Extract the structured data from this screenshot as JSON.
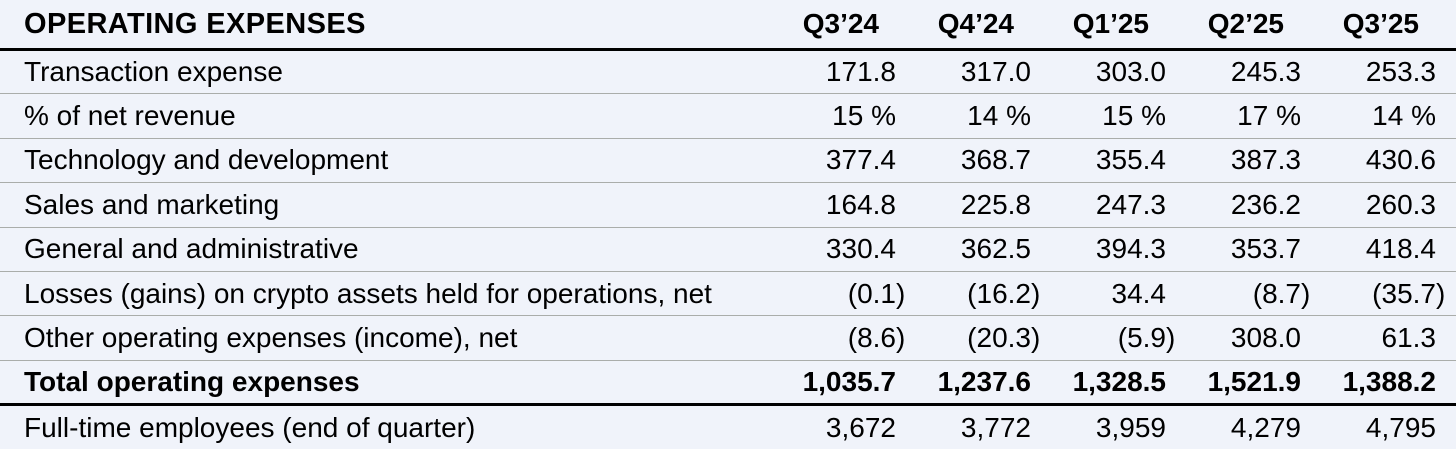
{
  "chart_data": {
    "type": "table",
    "title": "OPERATING EXPENSES",
    "columns": [
      "Q3’24",
      "Q4’24",
      "Q1’25",
      "Q2’25",
      "Q3’25"
    ],
    "rows": [
      {
        "label": "Transaction expense",
        "values": [
          "171.8",
          "317.0",
          "303.0",
          "245.3",
          "253.3"
        ],
        "total": false
      },
      {
        "label": "% of net revenue",
        "values": [
          "15 %",
          "14 %",
          "15 %",
          "17 %",
          "14 %"
        ],
        "total": false
      },
      {
        "label": "Technology and development",
        "values": [
          "377.4",
          "368.7",
          "355.4",
          "387.3",
          "430.6"
        ],
        "total": false
      },
      {
        "label": "Sales and marketing",
        "values": [
          "164.8",
          "225.8",
          "247.3",
          "236.2",
          "260.3"
        ],
        "total": false
      },
      {
        "label": "General and administrative",
        "values": [
          "330.4",
          "362.5",
          "394.3",
          "353.7",
          "418.4"
        ],
        "total": false
      },
      {
        "label": "Losses (gains) on crypto assets held for operations, net",
        "values": [
          "(0.1)",
          "(16.2)",
          "34.4",
          "(8.7)",
          "(35.7)"
        ],
        "total": false
      },
      {
        "label": "Other operating expenses (income), net",
        "values": [
          "(8.6)",
          "(20.3)",
          "(5.9)",
          "308.0",
          "61.3"
        ],
        "total": false
      },
      {
        "label": "Total operating expenses",
        "values": [
          "1,035.7",
          "1,237.6",
          "1,328.5",
          "1,521.9",
          "1,388.2"
        ],
        "total": true
      },
      {
        "label": "Full-time employees (end of quarter)",
        "values": [
          "3,672",
          "3,772",
          "3,959",
          "4,279",
          "4,795"
        ],
        "total": false
      }
    ],
    "colors": {
      "background": "#f0f3fa",
      "text": "#000000",
      "row_divider": "#aaadaa",
      "strong_rule": "#000000"
    },
    "layout": {
      "header_row_bold": true,
      "numeric_alignment": "right",
      "negative_format": "parentheses"
    }
  }
}
